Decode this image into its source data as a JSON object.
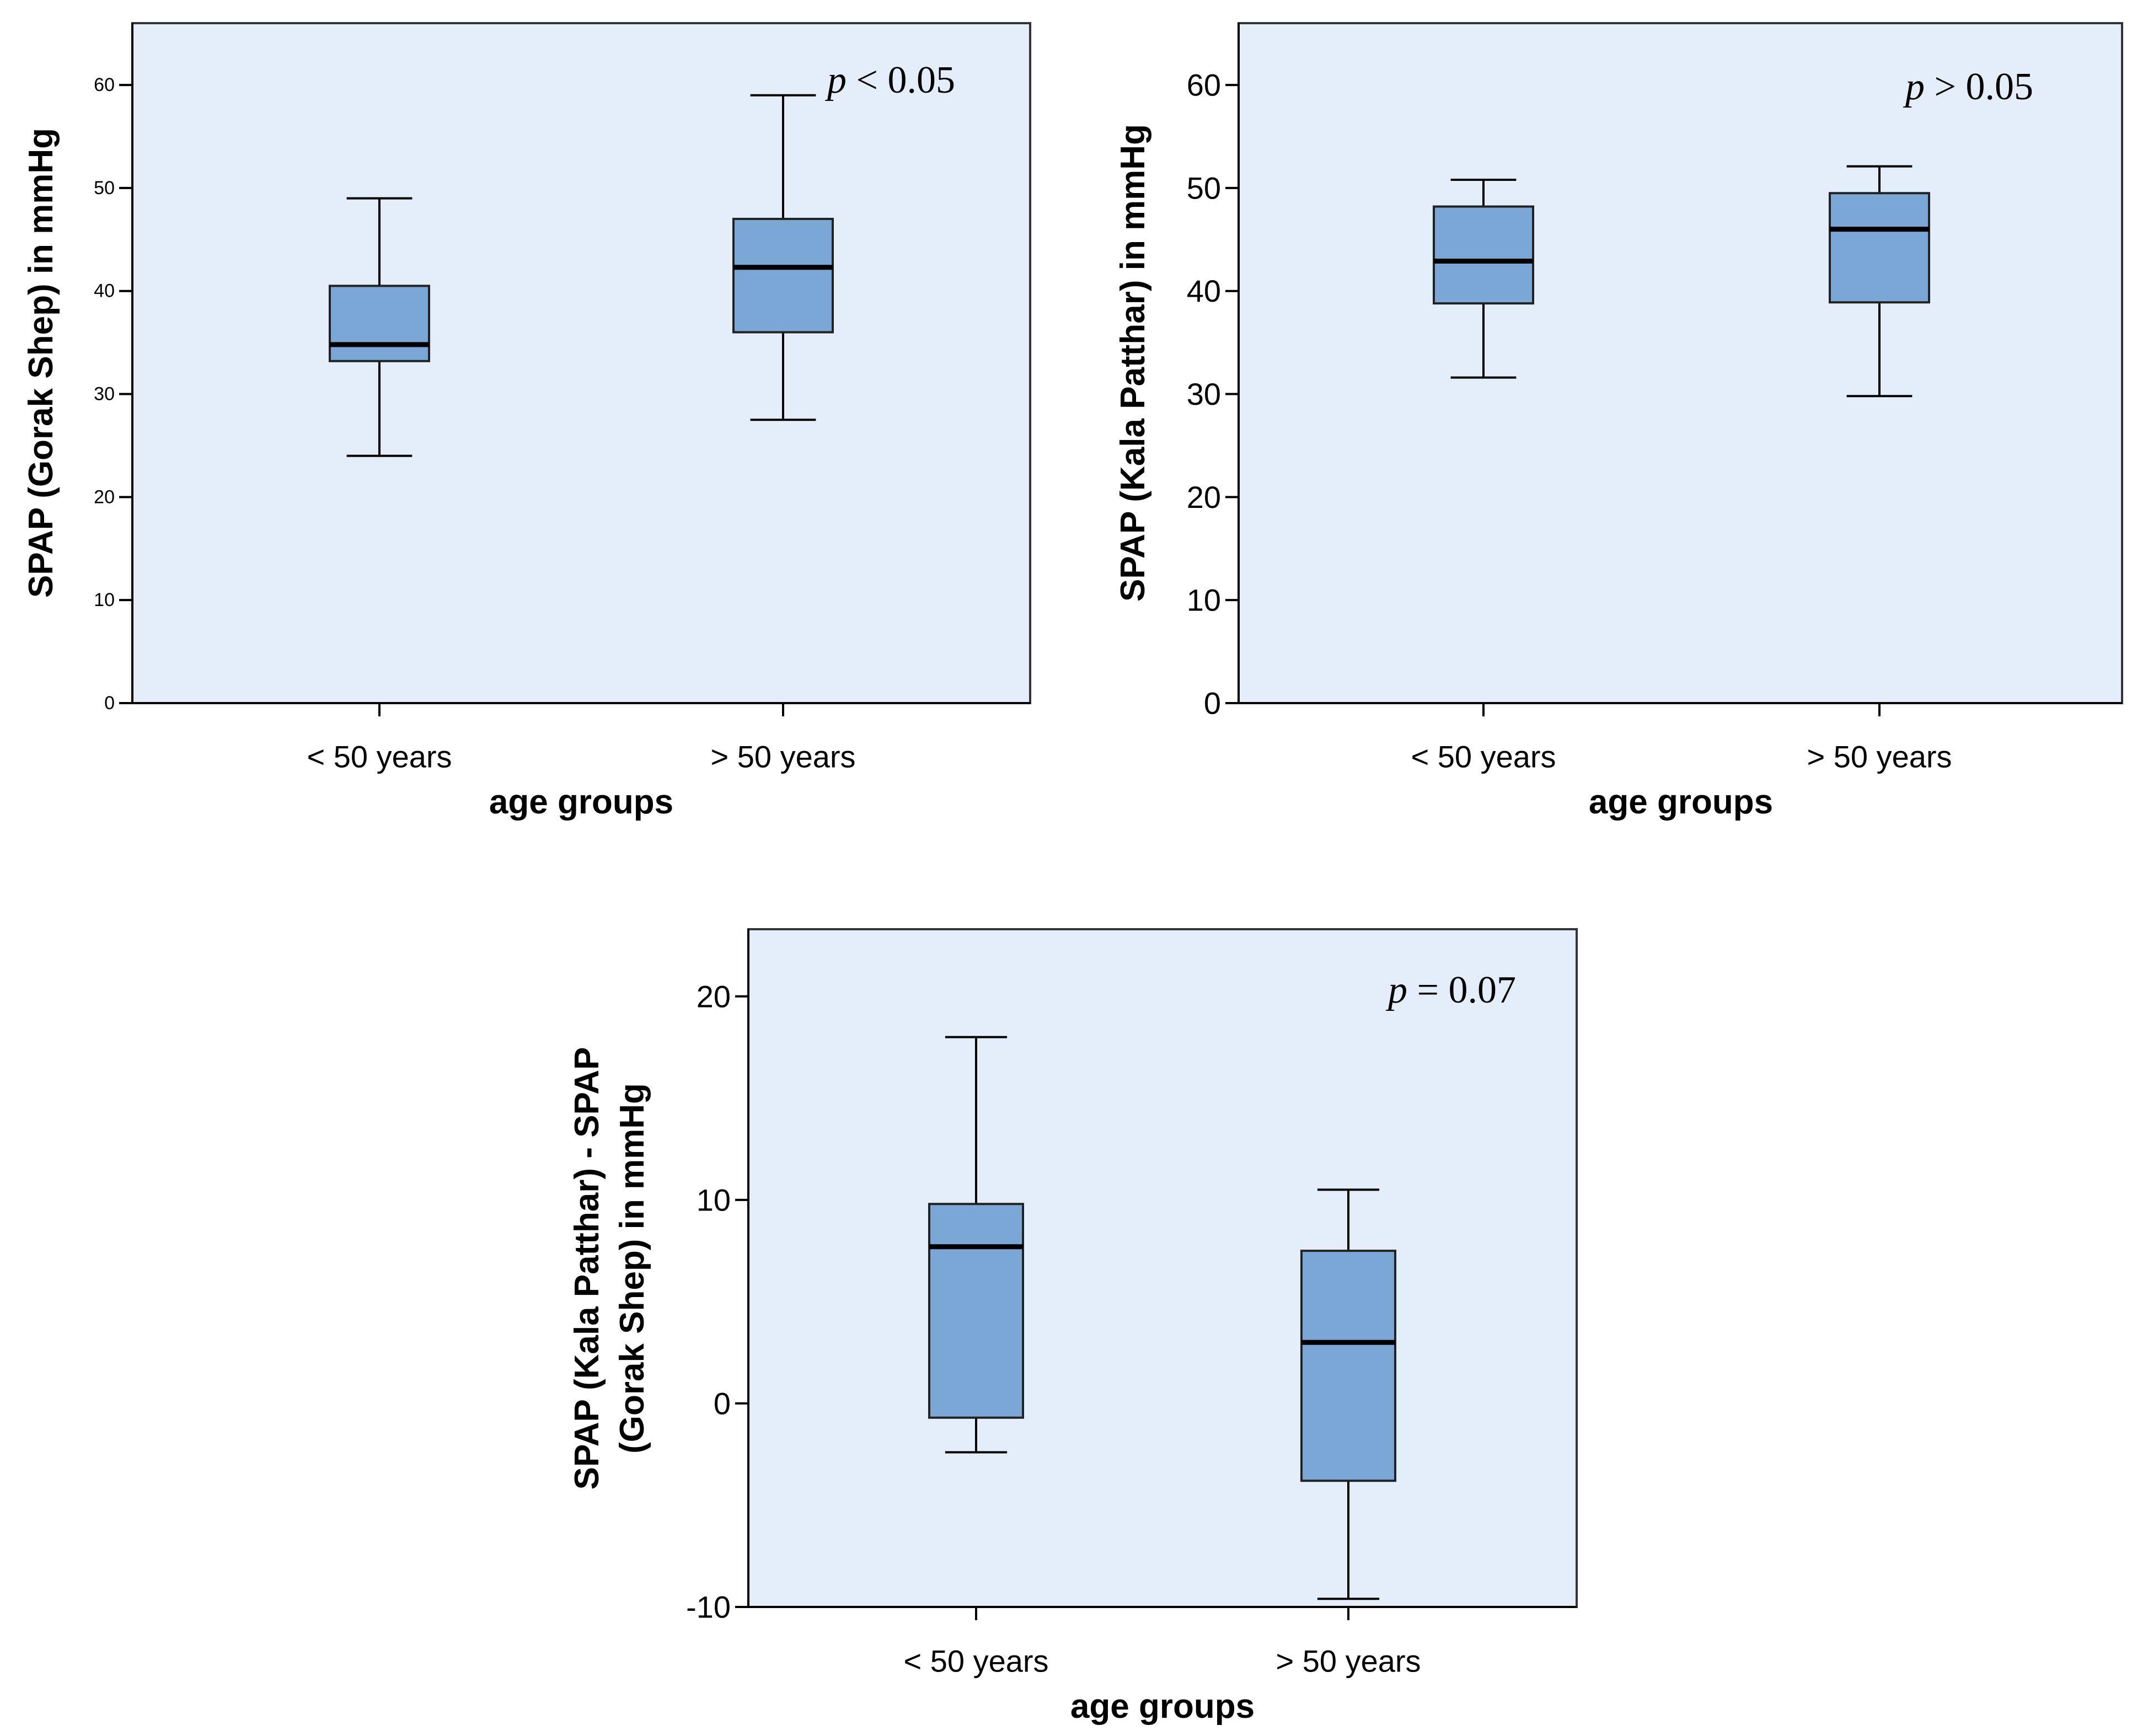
{
  "chart_data": [
    {
      "type": "box",
      "ylabel": "SPAP (Gorak Shep) in mmHg",
      "xlabel": "age groups",
      "annotation": {
        "symbol": "p",
        "text": " < 0.05"
      },
      "ylim": [
        0,
        66
      ],
      "yticks": [
        0,
        10,
        20,
        30,
        40,
        50,
        60
      ],
      "tick_labels": [
        "0",
        "10",
        "20",
        "30",
        "40",
        "50",
        "60"
      ],
      "grid": false,
      "categories": [
        "< 50 years",
        "> 50 years"
      ],
      "boxes": [
        {
          "min": 24,
          "q1": 33.2,
          "median": 34.8,
          "q3": 40.5,
          "max": 49
        },
        {
          "min": 27.5,
          "q1": 36,
          "median": 42.3,
          "q3": 47,
          "max": 59
        }
      ]
    },
    {
      "type": "box",
      "ylabel": "SPAP (Kala Patthar) in mmHg",
      "xlabel": "age groups",
      "annotation": {
        "symbol": "p",
        "text": " > 0.05"
      },
      "ylim": [
        0,
        66
      ],
      "yticks": [
        0,
        10,
        20,
        30,
        40,
        50,
        60
      ],
      "tick_labels": [
        "0",
        "10",
        "20",
        "30",
        "40",
        "50",
        "60"
      ],
      "grid": false,
      "categories": [
        "< 50 years",
        "> 50 years"
      ],
      "boxes": [
        {
          "min": 31.6,
          "q1": 38.8,
          "median": 42.9,
          "q3": 48.2,
          "max": 50.8
        },
        {
          "min": 29.8,
          "q1": 38.9,
          "median": 46,
          "q3": 49.5,
          "max": 52.1
        }
      ]
    },
    {
      "type": "box",
      "ylabel": "SPAP (Kala Patthar) - SPAP (Gorak Shep) in mmHg",
      "ylabel_lines": [
        "SPAP (Kala Patthar) - SPAP",
        "(Gorak Shep) in mmHg"
      ],
      "xlabel": "age groups",
      "annotation": {
        "symbol": "p",
        "text": " = 0.07"
      },
      "ylim": [
        -10,
        23.3
      ],
      "yticks": [
        -10,
        0,
        10,
        20
      ],
      "tick_labels": [
        "-10",
        "0",
        "10",
        "20"
      ],
      "grid": false,
      "categories": [
        "< 50 years",
        "> 50 years"
      ],
      "boxes": [
        {
          "min": -2.4,
          "q1": -0.7,
          "median": 7.7,
          "q3": 9.8,
          "max": 18
        },
        {
          "min": -9.6,
          "q1": -3.8,
          "median": 3,
          "q3": 7.5,
          "max": 10.5
        }
      ]
    }
  ]
}
